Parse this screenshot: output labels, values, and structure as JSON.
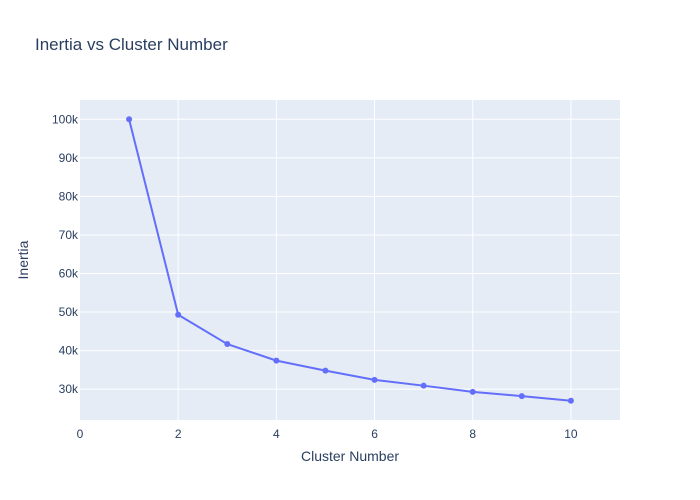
{
  "chart_data": {
    "type": "line",
    "title": "Inertia vs Cluster Number",
    "xlabel": "Cluster Number",
    "ylabel": "Inertia",
    "x": [
      1,
      2,
      3,
      4,
      5,
      6,
      7,
      8,
      9,
      10
    ],
    "series": [
      {
        "values": [
          100000,
          49300,
          41700,
          37400,
          34800,
          32400,
          30900,
          29300,
          28200,
          27000
        ]
      }
    ],
    "xlim": [
      0,
      11
    ],
    "ylim": [
      22000,
      105000
    ],
    "xticks": [
      0,
      2,
      4,
      6,
      8,
      10
    ],
    "xtick_labels": [
      "0",
      "2",
      "4",
      "6",
      "8",
      "10"
    ],
    "yticks": [
      30000,
      40000,
      50000,
      60000,
      70000,
      80000,
      90000,
      100000
    ],
    "ytick_labels": [
      "30k",
      "40k",
      "50k",
      "60k",
      "70k",
      "80k",
      "90k",
      "100k"
    ],
    "grid": true,
    "mode": "lines+markers",
    "colors": {
      "plot_background": "#e5ecf6",
      "gridline": "#ffffff",
      "line": "#636efa",
      "text": "#2a3f5f"
    }
  }
}
